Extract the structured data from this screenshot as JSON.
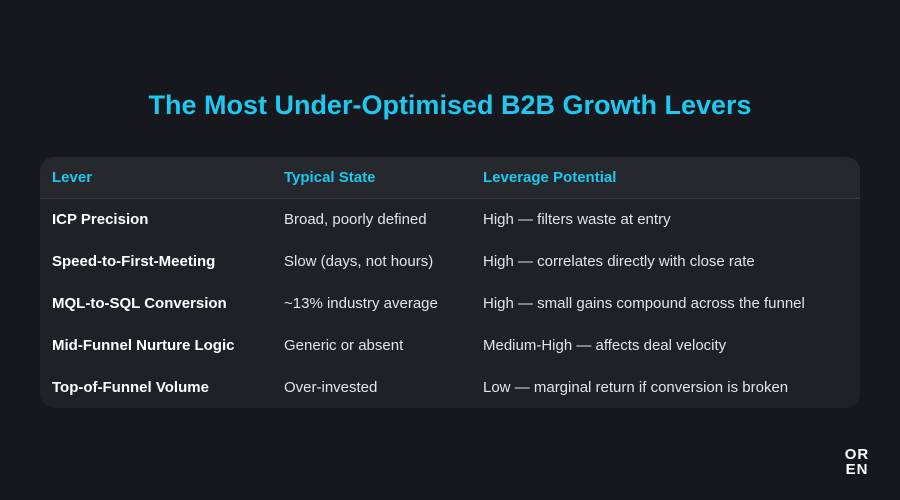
{
  "title": "The Most Under-Optimised B2B Growth Levers",
  "table": {
    "header": [
      "Lever",
      "Typical State",
      "Leverage Potential"
    ],
    "rows": [
      [
        "ICP Precision",
        "Broad, poorly defined",
        "High — filters waste at entry"
      ],
      [
        "Speed-to-First-Meeting",
        "Slow (days, not hours)",
        "High — correlates directly with close rate"
      ],
      [
        "MQL-to-SQL Conversion",
        "~13% industry average",
        "High — small gains compound across the funnel"
      ],
      [
        "Mid-Funnel Nurture Logic",
        "Generic or absent",
        "Medium-High — affects deal velocity"
      ],
      [
        "Top-of-Funnel Volume",
        "Over-invested",
        "Low — marginal return if conversion is broken"
      ]
    ]
  },
  "logo": [
    "OR",
    "EN"
  ]
}
